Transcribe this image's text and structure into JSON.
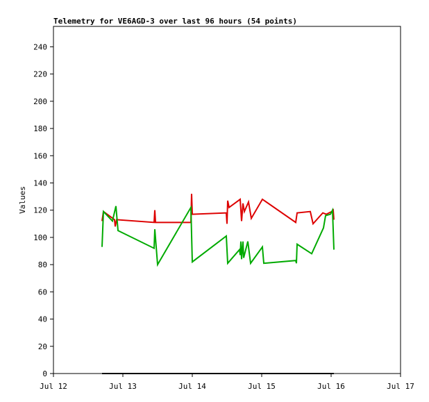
{
  "chart_data": {
    "type": "line",
    "title": "Telemetry for VE6AGD-3 over last 96 hours (54 points)",
    "y_label": "Values",
    "xlim": [
      12,
      17
    ],
    "xticks": [
      {
        "value": 12,
        "label": "Jul 12"
      },
      {
        "value": 13,
        "label": "Jul 13"
      },
      {
        "value": 14,
        "label": "Jul 14"
      },
      {
        "value": 15,
        "label": "Jul 15"
      },
      {
        "value": 16,
        "label": "Jul 16"
      },
      {
        "value": 17,
        "label": "Jul 17"
      }
    ],
    "ylim": [
      0,
      255
    ],
    "yticks": [
      0,
      20,
      40,
      60,
      80,
      100,
      120,
      140,
      160,
      180,
      200,
      220,
      240
    ],
    "grid": false,
    "series": [
      {
        "color": "#dd0000",
        "x": [
          12.7,
          12.72,
          12.88,
          12.89,
          12.91,
          13.45,
          13.46,
          13.47,
          13.98,
          13.99,
          14.0,
          14.49,
          14.5,
          14.51,
          14.53,
          14.69,
          14.71,
          14.73,
          14.75,
          14.81,
          14.85,
          15.01,
          15.49,
          15.51,
          15.7,
          15.74,
          15.88,
          15.93,
          16.01,
          16.03,
          16.04
        ],
        "values": [
          112,
          119,
          113,
          108,
          113,
          111,
          120,
          111,
          111,
          132,
          117,
          118,
          110,
          127,
          122,
          128,
          112,
          125,
          119,
          126,
          114,
          128,
          111,
          118,
          119,
          110,
          118,
          117,
          119,
          120,
          113
        ]
      },
      {
        "color": "#00aa00",
        "x": [
          12.7,
          12.72,
          12.85,
          12.9,
          12.93,
          13.45,
          13.46,
          13.5,
          13.98,
          14.0,
          14.49,
          14.51,
          14.68,
          14.69,
          14.7,
          14.71,
          14.73,
          14.74,
          14.8,
          14.84,
          15.01,
          15.03,
          15.49,
          15.5,
          15.51,
          15.72,
          15.89,
          15.92,
          15.99,
          16.02,
          16.04
        ],
        "values": [
          93,
          119,
          112,
          123,
          105,
          92,
          106,
          80,
          122,
          82,
          101,
          81,
          91,
          87,
          97,
          84,
          97,
          85,
          97,
          81,
          93,
          81,
          83,
          81,
          95,
          88,
          107,
          116,
          117,
          120,
          91
        ]
      },
      {
        "color": "#000000",
        "x": [
          12.7,
          16.04
        ],
        "values": [
          0,
          0
        ]
      }
    ]
  }
}
